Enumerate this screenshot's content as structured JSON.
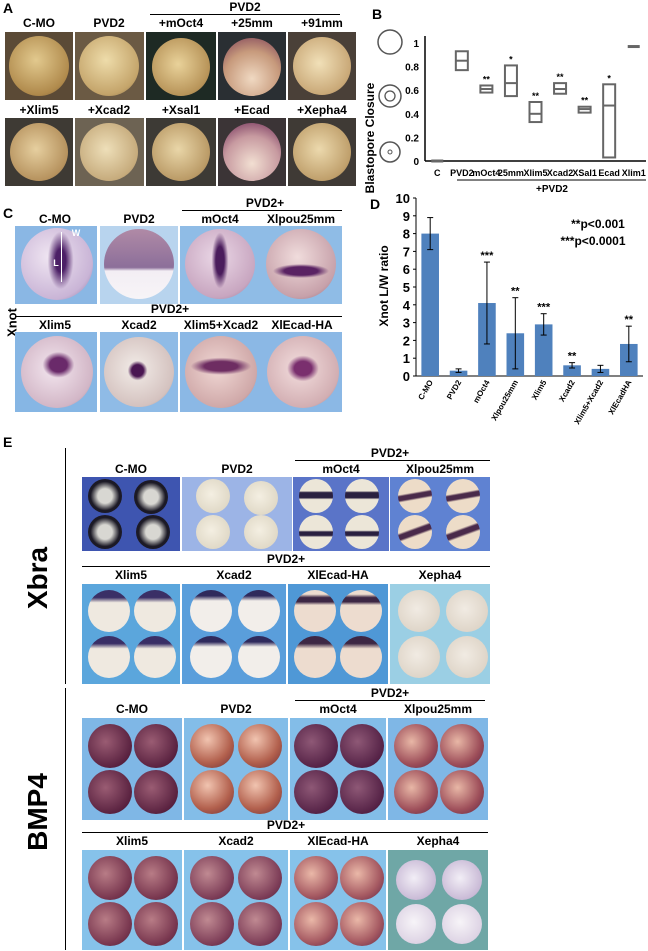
{
  "panels": {
    "a": "A",
    "b": "B",
    "c": "C",
    "d": "D",
    "e": "E"
  },
  "a": {
    "top_labels": [
      "C-MO",
      "PVD2",
      "+mOct4",
      "+25mm",
      "+91mm"
    ],
    "header": "PVD2",
    "bottom_labels": [
      "+Xlim5",
      "+Xcad2",
      "+Xsal1",
      "+Ecad",
      "+Xepha4"
    ]
  },
  "b": {
    "ylabel": "Blastopore Closure",
    "yticks": [
      "0",
      "0.2",
      "0.4",
      "0.6",
      "0.8",
      "1"
    ],
    "categories": [
      "C",
      "PVD2",
      "mOct4",
      "25mm",
      "Xlim5",
      "Xcad2",
      "XSal1",
      "Ecad",
      "Xlim1"
    ],
    "sig": [
      "",
      "",
      "**",
      "*",
      "**",
      "**",
      "**",
      "*",
      ""
    ],
    "footer": "+PVD2"
  },
  "c": {
    "header_top": "PVD2+",
    "top_labels": [
      "C-MO",
      "PVD2",
      "mOct4",
      "Xlpou25mm"
    ],
    "header_bottom": "PVD2+",
    "bottom_labels": [
      "Xlim5",
      "Xcad2",
      "Xlim5+Xcad2",
      "XlEcad-HA"
    ],
    "side_label": "Xnot",
    "w": "W",
    "l": "L"
  },
  "d": {
    "ylabel": "Xnot L/W ratio",
    "note1": "**p<0.001",
    "note2": "***p<0.0001"
  },
  "e": {
    "xbra_label": "Xbra",
    "bmp4_label": "BMP4",
    "xbra_header_top": "PVD2+",
    "xbra_top": [
      "C-MO",
      "PVD2",
      "mOct4",
      "Xlpou25mm"
    ],
    "xbra_header_bottom": "PVD2+",
    "xbra_bottom": [
      "Xlim5",
      "Xcad2",
      "XlEcad-HA",
      "Xepha4"
    ],
    "bmp_header_top": "PVD2+",
    "bmp_top": [
      "C-MO",
      "PVD2",
      "mOct4",
      "Xlpou25mm"
    ],
    "bmp_header_bottom": "PVD2+",
    "bmp_bottom": [
      "Xlim5",
      "Xcad2",
      "XlEcad-HA",
      "Xepha4"
    ]
  },
  "chart_data": [
    {
      "type": "box",
      "ylim": [
        0,
        1
      ],
      "categories": [
        "C",
        "PVD2",
        "mOct4",
        "25mm",
        "Xlim5",
        "Xcad2",
        "XSal1",
        "Ecad",
        "Xlim1"
      ],
      "boxes": [
        {
          "low": 0.0,
          "mid": 0.0,
          "high": 0.01
        },
        {
          "low": 0.77,
          "mid": 0.85,
          "high": 0.93
        },
        {
          "low": 0.58,
          "mid": 0.61,
          "high": 0.64
        },
        {
          "low": 0.55,
          "mid": 0.66,
          "high": 0.81
        },
        {
          "low": 0.33,
          "mid": 0.4,
          "high": 0.5
        },
        {
          "low": 0.57,
          "mid": 0.61,
          "high": 0.66
        },
        {
          "low": 0.41,
          "mid": 0.44,
          "high": 0.46
        },
        {
          "low": 0.03,
          "mid": 0.47,
          "high": 0.65
        },
        {
          "low": 0.97,
          "mid": 0.97,
          "high": 0.97
        }
      ]
    },
    {
      "type": "bar",
      "ylim": [
        0,
        10
      ],
      "yticks": [
        0,
        1,
        2,
        3,
        4,
        5,
        6,
        7,
        8,
        9,
        10
      ],
      "categories": [
        "C-MO",
        "PVD2",
        "mOct4",
        "Xlpou25mm",
        "Xlim5",
        "Xcad2",
        "Xlim5+Xcad2",
        "XlEcadHA"
      ],
      "values": [
        8.0,
        0.3,
        4.1,
        2.4,
        2.9,
        0.6,
        0.4,
        1.8
      ],
      "errors": [
        0.9,
        0.1,
        2.3,
        2.0,
        0.6,
        0.15,
        0.2,
        1.0
      ],
      "sig": [
        "",
        "",
        "***",
        "**",
        "***",
        "**",
        "",
        "**"
      ],
      "color": "#4f81bd"
    }
  ]
}
